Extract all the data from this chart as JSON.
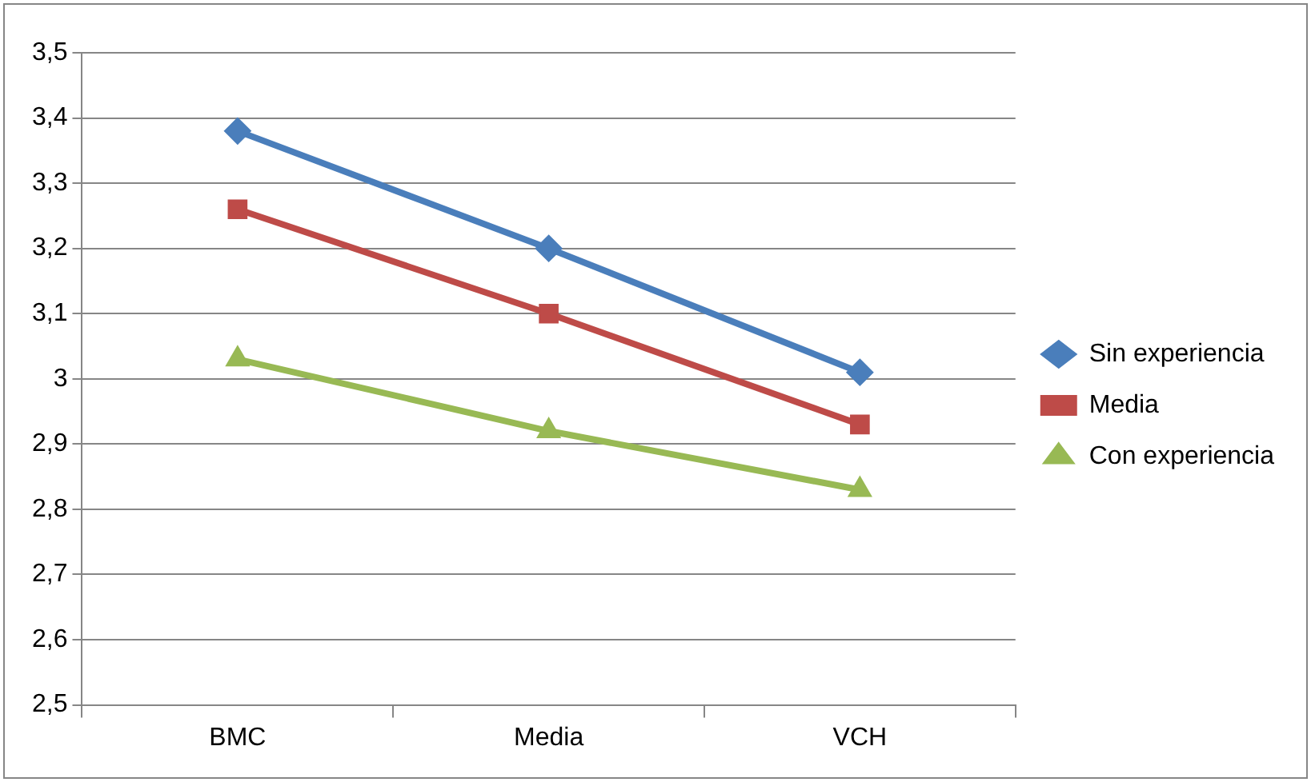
{
  "chart_data": {
    "type": "line",
    "categories": [
      "BMC",
      "Media",
      "VCH"
    ],
    "series": [
      {
        "name": "Sin experiencia",
        "color": "#4a7ebb",
        "marker": "diamond",
        "values": [
          3.38,
          3.2,
          3.01
        ]
      },
      {
        "name": "Media",
        "color": "#be4b48",
        "marker": "square",
        "values": [
          3.26,
          3.1,
          2.93
        ]
      },
      {
        "name": "Con experiencia",
        "color": "#98b954",
        "marker": "triangle",
        "values": [
          3.03,
          2.92,
          2.83
        ]
      }
    ],
    "ylim": [
      2.5,
      3.5
    ],
    "yticks": [
      {
        "value": 2.5,
        "label": "2,5"
      },
      {
        "value": 2.6,
        "label": "2,6"
      },
      {
        "value": 2.7,
        "label": "2,7"
      },
      {
        "value": 2.8,
        "label": "2,8"
      },
      {
        "value": 2.9,
        "label": "2,9"
      },
      3,
      {
        "value": 3.1,
        "label": "3,1"
      },
      {
        "value": 3.2,
        "label": "3,2"
      },
      {
        "value": 3.3,
        "label": "3,3"
      },
      {
        "value": 3.4,
        "label": "3,4"
      },
      {
        "value": 3.5,
        "label": "3,5"
      }
    ],
    "grid": "y",
    "legend": "right",
    "line_style": "solid"
  }
}
